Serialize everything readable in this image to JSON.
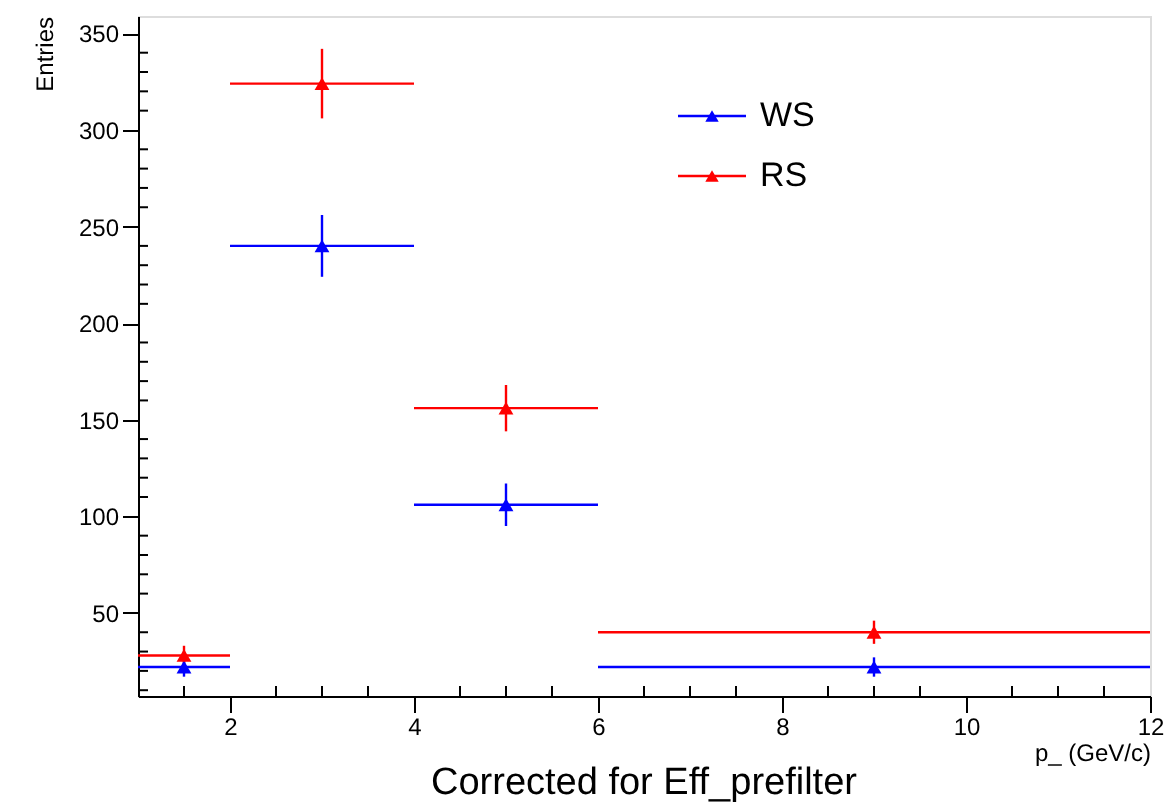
{
  "chart_data": {
    "type": "scatter",
    "title": "Corrected for Eff_prefilter",
    "xlabel": "p_ (GeV/c)",
    "ylabel": "Entries",
    "xlim": [
      1,
      12
    ],
    "ylim": [
      7,
      359
    ],
    "xticks": [
      {
        "value": 1.5,
        "label": null
      },
      2,
      {
        "value": 2.5,
        "label": null
      },
      {
        "value": 3,
        "label": null
      },
      {
        "value": 3.5,
        "label": null
      },
      4,
      {
        "value": 4.5,
        "label": null
      },
      {
        "value": 5,
        "label": null
      },
      {
        "value": 5.5,
        "label": null
      },
      6,
      {
        "value": 6.5,
        "label": null
      },
      {
        "value": 7,
        "label": null
      },
      {
        "value": 7.5,
        "label": null
      },
      8,
      {
        "value": 8.5,
        "label": null
      },
      {
        "value": 9,
        "label": null
      },
      {
        "value": 9.5,
        "label": null
      },
      10,
      {
        "value": 10.5,
        "label": null
      },
      {
        "value": 11,
        "label": null
      },
      {
        "value": 11.5,
        "label": null
      },
      12
    ],
    "yticks": [
      {
        "value": 10,
        "label": null
      },
      {
        "value": 20,
        "label": null
      },
      {
        "value": 30,
        "label": null
      },
      {
        "value": 40,
        "label": null
      },
      50,
      {
        "value": 60,
        "label": null
      },
      {
        "value": 70,
        "label": null
      },
      {
        "value": 80,
        "label": null
      },
      {
        "value": 90,
        "label": null
      },
      100,
      {
        "value": 110,
        "label": null
      },
      {
        "value": 120,
        "label": null
      },
      {
        "value": 130,
        "label": null
      },
      {
        "value": 140,
        "label": null
      },
      150,
      {
        "value": 160,
        "label": null
      },
      {
        "value": 170,
        "label": null
      },
      {
        "value": 180,
        "label": null
      },
      {
        "value": 190,
        "label": null
      },
      200,
      {
        "value": 210,
        "label": null
      },
      {
        "value": 220,
        "label": null
      },
      {
        "value": 230,
        "label": null
      },
      {
        "value": 240,
        "label": null
      },
      250,
      {
        "value": 260,
        "label": null
      },
      {
        "value": 270,
        "label": null
      },
      {
        "value": 280,
        "label": null
      },
      {
        "value": 290,
        "label": null
      },
      300,
      {
        "value": 310,
        "label": null
      },
      {
        "value": 320,
        "label": null
      },
      {
        "value": 330,
        "label": null
      },
      {
        "value": 340,
        "label": null
      },
      350
    ],
    "x": [
      1.5,
      3,
      5,
      9
    ],
    "marker": "triangle",
    "grid": false,
    "legend": "top",
    "series": [
      {
        "name": "WS",
        "color": "#0000ff",
        "values": [
          22,
          240,
          106,
          22
        ],
        "errors": [
          5,
          16,
          11,
          5
        ],
        "xerrors": [
          0.5,
          1,
          1,
          3
        ]
      },
      {
        "name": "RS",
        "color": "#ff0000",
        "values": [
          28,
          324,
          156,
          40
        ],
        "errors": [
          5,
          18,
          12,
          6
        ],
        "xerrors": [
          0.5,
          1,
          1,
          3
        ]
      }
    ]
  }
}
